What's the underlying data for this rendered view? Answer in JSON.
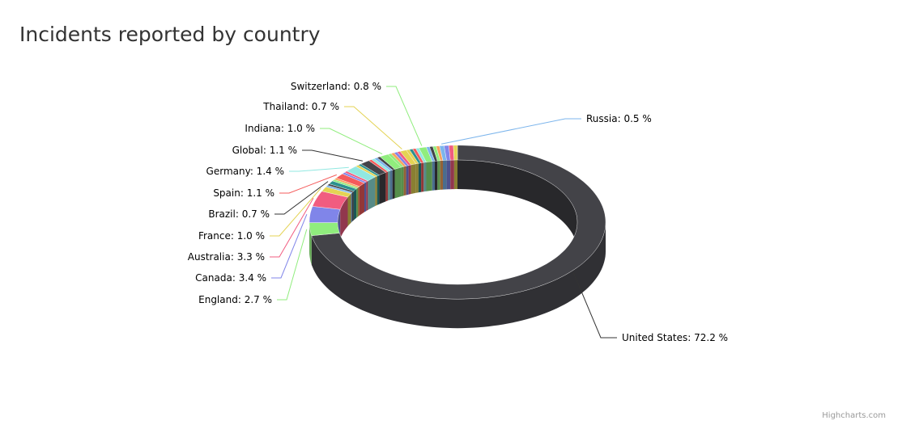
{
  "title": "Incidents reported by country",
  "credits": "Highcharts.com",
  "chart_data": {
    "type": "pie",
    "subtype": "3d-donut",
    "title": "Incidents reported by country",
    "series": [
      {
        "name": "United States",
        "value": 72.2,
        "label": "United States: 72.2 %",
        "color": "#434348"
      },
      {
        "name": "England",
        "value": 2.7,
        "label": "England: 2.7 %",
        "color": "#90ed7d"
      },
      {
        "name": "Canada",
        "value": 3.4,
        "label": "Canada: 3.4 %",
        "color": "#8085e9"
      },
      {
        "name": "Australia",
        "value": 3.3,
        "label": "Australia: 3.3 %",
        "color": "#f15c80"
      },
      {
        "name": "France",
        "value": 1.0,
        "label": "France: 1.0 %",
        "color": "#e4d354"
      },
      {
        "name": "Brazil",
        "value": 0.7,
        "label": "Brazil: 0.7 %",
        "color": "#2b908f"
      },
      {
        "name": "Spain",
        "value": 1.1,
        "label": "Spain: 1.1 %",
        "color": "#f45b5b"
      },
      {
        "name": "Germany",
        "value": 1.4,
        "label": "Germany: 1.4 %",
        "color": "#91e8e1"
      },
      {
        "name": "Global",
        "value": 1.1,
        "label": "Global: 1.1 %",
        "color": "#434348"
      },
      {
        "name": "Indiana",
        "value": 1.0,
        "label": "Indiana: 1.0 %",
        "color": "#90ed7d"
      },
      {
        "name": "Thailand",
        "value": 0.7,
        "label": "Thailand: 0.7 %",
        "color": "#e4d354"
      },
      {
        "name": "Switzerland",
        "value": 0.8,
        "label": "Switzerland: 0.8 %",
        "color": "#90ed7d"
      },
      {
        "name": "Russia",
        "value": 0.5,
        "label": "Russia: 0.5 %",
        "color": "#7cb5ec"
      }
    ],
    "unlabeled_small_slice_colors": [
      "#7cb5ec",
      "#434348",
      "#90ed7d",
      "#f7a35c",
      "#8085e9",
      "#f15c80",
      "#e4d354",
      "#2b908f",
      "#f45b5b",
      "#91e8e1"
    ]
  }
}
